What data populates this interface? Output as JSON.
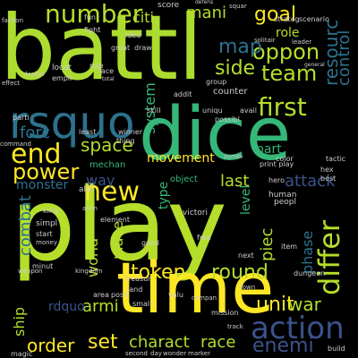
{
  "words": [
    {
      "text": "battl",
      "color": "#addc30",
      "rotated": false
    },
    {
      "text": "play",
      "color": "#b5de2b",
      "rotated": false
    },
    {
      "text": "dice",
      "color": "#35b779",
      "rotated": false
    },
    {
      "text": "time",
      "color": "#fde725",
      "rotated": false
    },
    {
      "text": "rsquo",
      "color": "#2c728e",
      "rotated": false
    },
    {
      "text": "action",
      "color": "#3b528b",
      "rotated": false
    },
    {
      "text": "differ",
      "color": "#b5de2b",
      "rotated": true
    },
    {
      "text": "first",
      "color": "#b5de2b",
      "rotated": false
    },
    {
      "text": "new",
      "color": "#fde725",
      "rotated": false
    },
    {
      "text": "end",
      "color": "#fde725",
      "rotated": false
    },
    {
      "text": "number",
      "color": "#b5de2b",
      "rotated": false
    },
    {
      "text": "power",
      "color": "#fde725",
      "rotated": false
    },
    {
      "text": "oppon",
      "color": "#b5de2b",
      "rotated": false
    },
    {
      "text": "team",
      "color": "#b5de2b",
      "rotated": false
    },
    {
      "text": "resourc",
      "color": "#2c728e",
      "rotated": true
    },
    {
      "text": "goal",
      "color": "#fde725",
      "rotated": false
    },
    {
      "text": "side",
      "color": "#b5de2b",
      "rotated": false
    },
    {
      "text": "map",
      "color": "#2c728e",
      "rotated": false
    },
    {
      "text": "mani",
      "color": "#b5de2b",
      "rotated": false
    },
    {
      "text": "round",
      "color": "#b5de2b",
      "rotated": false
    },
    {
      "text": "token",
      "color": "#fde725",
      "rotated": false
    },
    {
      "text": "unit",
      "color": "#fde725",
      "rotated": false
    },
    {
      "text": "war",
      "color": "#b5de2b",
      "rotated": false
    },
    {
      "text": "set",
      "color": "#fde725",
      "rotated": false
    },
    {
      "text": "charact",
      "color": "#b5de2b",
      "rotated": false
    },
    {
      "text": "race",
      "color": "#b5de2b",
      "rotated": false
    },
    {
      "text": "order",
      "color": "#fde725",
      "rotated": false
    },
    {
      "text": "enemi",
      "color": "#3b528b",
      "rotated": false
    },
    {
      "text": "space",
      "color": "#b5de2b",
      "rotated": false
    },
    {
      "text": "forc",
      "color": "#2c728e",
      "rotated": false
    },
    {
      "text": "combat",
      "color": "#2c728e",
      "rotated": true
    },
    {
      "text": "world",
      "color": "#b5de2b",
      "rotated": true
    },
    {
      "text": "place",
      "color": "#b5de2b",
      "rotated": true
    },
    {
      "text": "piec",
      "color": "#b5de2b",
      "rotated": true
    },
    {
      "text": "armi",
      "color": "#b5de2b",
      "rotated": false
    },
    {
      "text": "ship",
      "color": "#b5de2b",
      "rotated": true
    },
    {
      "text": "attack",
      "color": "#3b528b",
      "rotated": false
    },
    {
      "text": "last",
      "color": "#b5de2b",
      "rotated": false
    },
    {
      "text": "system",
      "color": "#35b779",
      "rotated": true
    },
    {
      "text": "movement",
      "color": "#fde725",
      "rotated": false
    },
    {
      "text": "citi",
      "color": "#b5de2b",
      "rotated": false
    },
    {
      "text": "way",
      "color": "#3b528b",
      "rotated": false
    },
    {
      "text": "monster",
      "color": "#2c728e",
      "rotated": false
    },
    {
      "text": "phase",
      "color": "#2c728e",
      "rotated": true
    },
    {
      "text": "level",
      "color": "#35b779",
      "rotated": true
    },
    {
      "text": "control",
      "color": "#2c728e",
      "rotated": true
    },
    {
      "text": "role",
      "color": "#b5de2b",
      "rotated": false
    },
    {
      "text": "type",
      "color": "#35b779",
      "rotated": true
    },
    {
      "text": "part",
      "color": "#35b779",
      "rotated": false
    },
    {
      "text": "mechan",
      "color": "#35b779",
      "rotated": false
    },
    {
      "text": "object",
      "color": "#35b779",
      "rotated": false
    },
    {
      "text": "rdquo",
      "color": "#3b528b",
      "rotated": false
    },
    {
      "text": "score",
      "color": "#cccccc",
      "rotated": false
    },
    {
      "text": "fight",
      "color": "#cccccc",
      "rotated": false
    },
    {
      "text": "strateg",
      "color": "#cccccc",
      "rotated": false
    },
    {
      "text": "scenario",
      "color": "#cccccc",
      "rotated": false
    },
    {
      "text": "counter",
      "color": "#cccccc",
      "rotated": false
    },
    {
      "text": "abil",
      "color": "#cccccc",
      "rotated": false
    },
    {
      "text": "victori",
      "color": "#cccccc",
      "rotated": false
    },
    {
      "text": "human",
      "color": "#cccccc",
      "rotated": false
    },
    {
      "text": "peopl",
      "color": "#cccccc",
      "rotated": false
    },
    {
      "text": "item",
      "color": "#cccccc",
      "rotated": false
    },
    {
      "text": "mission",
      "color": "#cccccc",
      "rotated": false
    },
    {
      "text": "build",
      "color": "#cccccc",
      "rotated": false
    },
    {
      "text": "track",
      "color": "#cccccc",
      "rotated": false
    },
    {
      "text": "zombi",
      "color": "#cccccc",
      "rotated": false
    },
    {
      "text": "tactic",
      "color": "#cccccc",
      "rotated": false
    },
    {
      "text": "hex",
      "color": "#cccccc",
      "rotated": false
    },
    {
      "text": "best",
      "color": "#cccccc",
      "rotated": false
    },
    {
      "text": "hero",
      "color": "#cccccc",
      "rotated": false
    },
    {
      "text": "king",
      "color": "#cccccc",
      "rotated": false
    },
    {
      "text": "simpl",
      "color": "#cccccc",
      "rotated": false
    },
    {
      "text": "start",
      "color": "#cccccc",
      "rotated": false
    },
    {
      "text": "money",
      "color": "#cccccc",
      "rotated": false
    },
    {
      "text": "good",
      "color": "#cccccc",
      "rotated": false
    },
    {
      "text": "free",
      "color": "#cccccc",
      "rotated": false
    },
    {
      "text": "next",
      "color": "#cccccc",
      "rotated": false
    },
    {
      "text": "area",
      "color": "#cccccc",
      "rotated": false
    },
    {
      "text": "posit",
      "color": "#cccccc",
      "rotated": false
    },
    {
      "text": "dungeon",
      "color": "#cccccc",
      "rotated": false
    },
    {
      "text": "kingdom",
      "color": "#cccccc",
      "rotated": false
    },
    {
      "text": "weapon",
      "color": "#cccccc",
      "rotated": false
    },
    {
      "text": "marker",
      "color": "#cccccc",
      "rotated": false
    },
    {
      "text": "second",
      "color": "#cccccc",
      "rotated": false
    },
    {
      "text": "day",
      "color": "#cccccc",
      "rotated": false
    },
    {
      "text": "wonder",
      "color": "#cccccc",
      "rotated": false
    },
    {
      "text": "town",
      "color": "#cccccc",
      "rotated": false
    },
    {
      "text": "element",
      "color": "#cccccc",
      "rotated": false
    },
    {
      "text": "magic",
      "color": "#cccccc",
      "rotated": false
    },
    {
      "text": "alien",
      "color": "#cccccc",
      "rotated": false
    },
    {
      "text": "rule",
      "color": "#cccccc",
      "rotated": false
    },
    {
      "text": "locat",
      "color": "#cccccc",
      "rotated": false
    },
    {
      "text": "empir",
      "color": "#cccccc",
      "rotated": false
    },
    {
      "text": "great",
      "color": "#cccccc",
      "rotated": false
    },
    {
      "text": "face",
      "color": "#cccccc",
      "rotated": false
    },
    {
      "text": "total",
      "color": "#cccccc",
      "rotated": false
    },
    {
      "text": "draw",
      "color": "#cccccc",
      "rotated": false
    },
    {
      "text": "idea",
      "color": "#cccccc",
      "rotated": false
    },
    {
      "text": "skill",
      "color": "#cccccc",
      "rotated": false
    },
    {
      "text": "addit",
      "color": "#cccccc",
      "rotated": false
    },
    {
      "text": "group",
      "color": "#cccccc",
      "rotated": false
    },
    {
      "text": "uniqu",
      "color": "#cccccc",
      "rotated": false
    },
    {
      "text": "possibl",
      "color": "#cccccc",
      "rotated": false
    },
    {
      "text": "avail",
      "color": "#cccccc",
      "rotated": false
    },
    {
      "text": "print play",
      "color": "#cccccc",
      "rotated": false
    },
    {
      "text": "color",
      "color": "#cccccc",
      "rotated": false
    },
    {
      "text": "least",
      "color": "#cccccc",
      "rotated": false
    },
    {
      "text": "winner",
      "color": "#cccccc",
      "rotated": false
    },
    {
      "text": "thing",
      "color": "#cccccc",
      "rotated": false
    },
    {
      "text": "parti",
      "color": "#cccccc",
      "rotated": false
    },
    {
      "text": "command",
      "color": "#cccccc",
      "rotated": false
    },
    {
      "text": "minut",
      "color": "#cccccc",
      "rotated": false
    },
    {
      "text": "valu",
      "color": "#cccccc",
      "rotated": false
    },
    {
      "text": "small",
      "color": "#cccccc",
      "rotated": false
    },
    {
      "text": "compan",
      "color": "#cccccc",
      "rotated": false
    },
    {
      "text": "treasur",
      "color": "#cccccc",
      "rotated": false
    },
    {
      "text": "land",
      "color": "#cccccc",
      "rotated": false
    },
    {
      "text": "faction",
      "color": "#cccccc",
      "rotated": false
    },
    {
      "text": "fun",
      "color": "#cccccc",
      "rotated": false
    },
    {
      "text": "effect",
      "color": "#cccccc",
      "rotated": false
    },
    {
      "text": "design",
      "color": "#cccccc",
      "rotated": false
    },
    {
      "text": "leader",
      "color": "#cccccc",
      "rotated": false
    },
    {
      "text": "solitair",
      "color": "#cccccc",
      "rotated": false
    },
    {
      "text": "general",
      "color": "#cccccc",
      "rotated": false
    },
    {
      "text": "defens",
      "color": "#cccccc",
      "rotated": false
    },
    {
      "text": "squar",
      "color": "#cccccc",
      "rotated": false
    }
  ]
}
